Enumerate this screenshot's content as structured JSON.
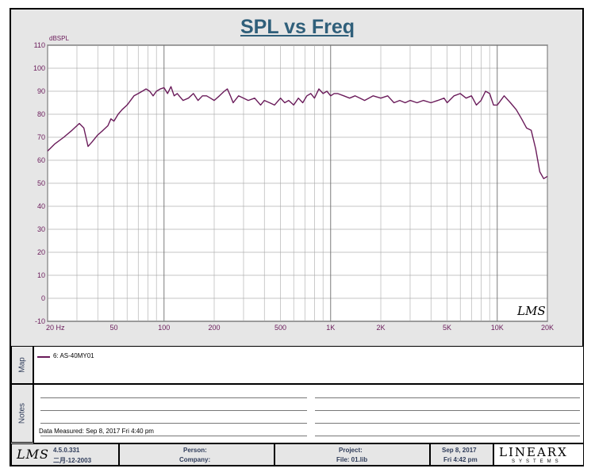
{
  "chart_data": {
    "type": "line",
    "title": "SPL vs Freq",
    "ylabel": "dBSPL",
    "xscale": "log",
    "xlim": [
      20,
      20000
    ],
    "ylim": [
      -10,
      110
    ],
    "grid": true,
    "yticks": [
      "110",
      "100",
      "90",
      "80",
      "70",
      "60",
      "50",
      "40",
      "30",
      "20",
      "10",
      "0",
      "-10"
    ],
    "xticks": [
      {
        "v": 20,
        "label": "20  Hz"
      },
      {
        "v": 50,
        "label": "50"
      },
      {
        "v": 100,
        "label": "100"
      },
      {
        "v": 200,
        "label": "200"
      },
      {
        "v": 500,
        "label": "500"
      },
      {
        "v": 1000,
        "label": "1K"
      },
      {
        "v": 2000,
        "label": "2K"
      },
      {
        "v": 5000,
        "label": "5K"
      },
      {
        "v": 10000,
        "label": "10K"
      },
      {
        "v": 20000,
        "label": "20K"
      }
    ],
    "series": [
      {
        "name": "6: AS-40MY01",
        "color": "#6a1b5a",
        "x": [
          20,
          22,
          25,
          28,
          31,
          33,
          35,
          37,
          40,
          43,
          46,
          48,
          50,
          53,
          56,
          60,
          63,
          66,
          70,
          74,
          78,
          82,
          86,
          90,
          95,
          100,
          105,
          110,
          115,
          120,
          130,
          140,
          150,
          160,
          170,
          180,
          190,
          200,
          215,
          230,
          240,
          250,
          260,
          280,
          300,
          320,
          350,
          380,
          400,
          430,
          460,
          500,
          530,
          560,
          600,
          640,
          680,
          720,
          760,
          800,
          850,
          900,
          950,
          1000,
          1050,
          1100,
          1200,
          1300,
          1400,
          1500,
          1600,
          1800,
          2000,
          2200,
          2400,
          2600,
          2800,
          3000,
          3300,
          3600,
          4000,
          4400,
          4800,
          5000,
          5500,
          6000,
          6500,
          7000,
          7500,
          8000,
          8500,
          9000,
          9500,
          10000,
          10500,
          11000,
          12000,
          13000,
          14000,
          15000,
          16000,
          17000,
          18000,
          19000,
          20000
        ],
        "values": [
          64,
          67,
          70,
          73,
          76,
          74,
          66,
          68,
          71,
          73,
          75,
          78,
          77,
          80,
          82,
          84,
          86,
          88,
          89,
          90,
          91,
          90,
          88,
          90,
          91,
          91.5,
          89,
          92,
          88,
          89,
          86,
          87,
          89,
          86,
          88,
          88,
          87,
          86,
          88,
          90,
          91,
          88,
          85,
          88,
          87,
          86,
          87,
          84,
          86,
          85,
          84,
          87,
          85,
          86,
          84,
          87,
          85,
          88,
          89,
          87,
          91,
          89,
          90,
          88,
          89,
          89,
          88,
          87,
          88,
          87,
          86,
          88,
          87,
          88,
          85,
          86,
          85,
          86,
          85,
          86,
          85,
          86,
          87,
          85,
          88,
          89,
          87,
          88,
          84,
          86,
          90,
          89,
          84,
          84,
          86,
          88,
          85,
          82,
          78,
          74,
          73,
          65,
          55,
          52,
          53
        ]
      }
    ]
  },
  "map": {
    "label": "Map",
    "legend": "6: AS-40MY01"
  },
  "notes": {
    "label": "Notes",
    "measured": "Data Measured: Sep  8, 2017  Fri  4:40 pm"
  },
  "footer": {
    "logo": "LMS",
    "version": "4.5.0.331",
    "date_cn": "二月-12-2003",
    "person": "Person:",
    "company": "Company:",
    "project": "Project:",
    "file": "File: 01.lib",
    "date": "Sep  8, 2017",
    "time": "Fri  4:42 pm",
    "brand": "LINEARX",
    "brand_sub": "SYSTEMS"
  },
  "watermark": "LMS"
}
